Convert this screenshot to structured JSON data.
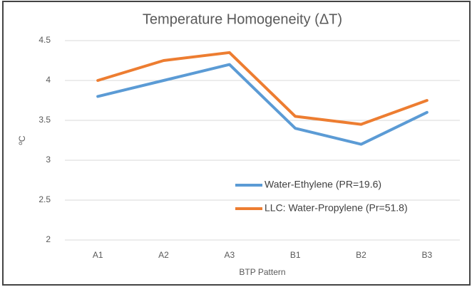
{
  "chart_data": {
    "type": "line",
    "title": "Temperature Homogeneity (ΔT)",
    "x_label": "BTP Pattern",
    "y_label": "ºC",
    "categories": [
      "A1",
      "A2",
      "A3",
      "B1",
      "B2",
      "B3"
    ],
    "series": [
      {
        "name": "Water-Ethylene (PR=19.6)",
        "color": "#5b9bd5",
        "values": [
          3.8,
          4.0,
          4.2,
          3.4,
          3.2,
          3.6
        ]
      },
      {
        "name": "LLC: Water-Propylene (Pr=51.8)",
        "color": "#ed7d31",
        "values": [
          4.0,
          4.25,
          4.35,
          3.55,
          3.45,
          3.75
        ]
      }
    ],
    "ylim": [
      2,
      4.5
    ],
    "yticks": [
      2,
      2.5,
      3,
      3.5,
      4,
      4.5
    ],
    "grid": true
  }
}
